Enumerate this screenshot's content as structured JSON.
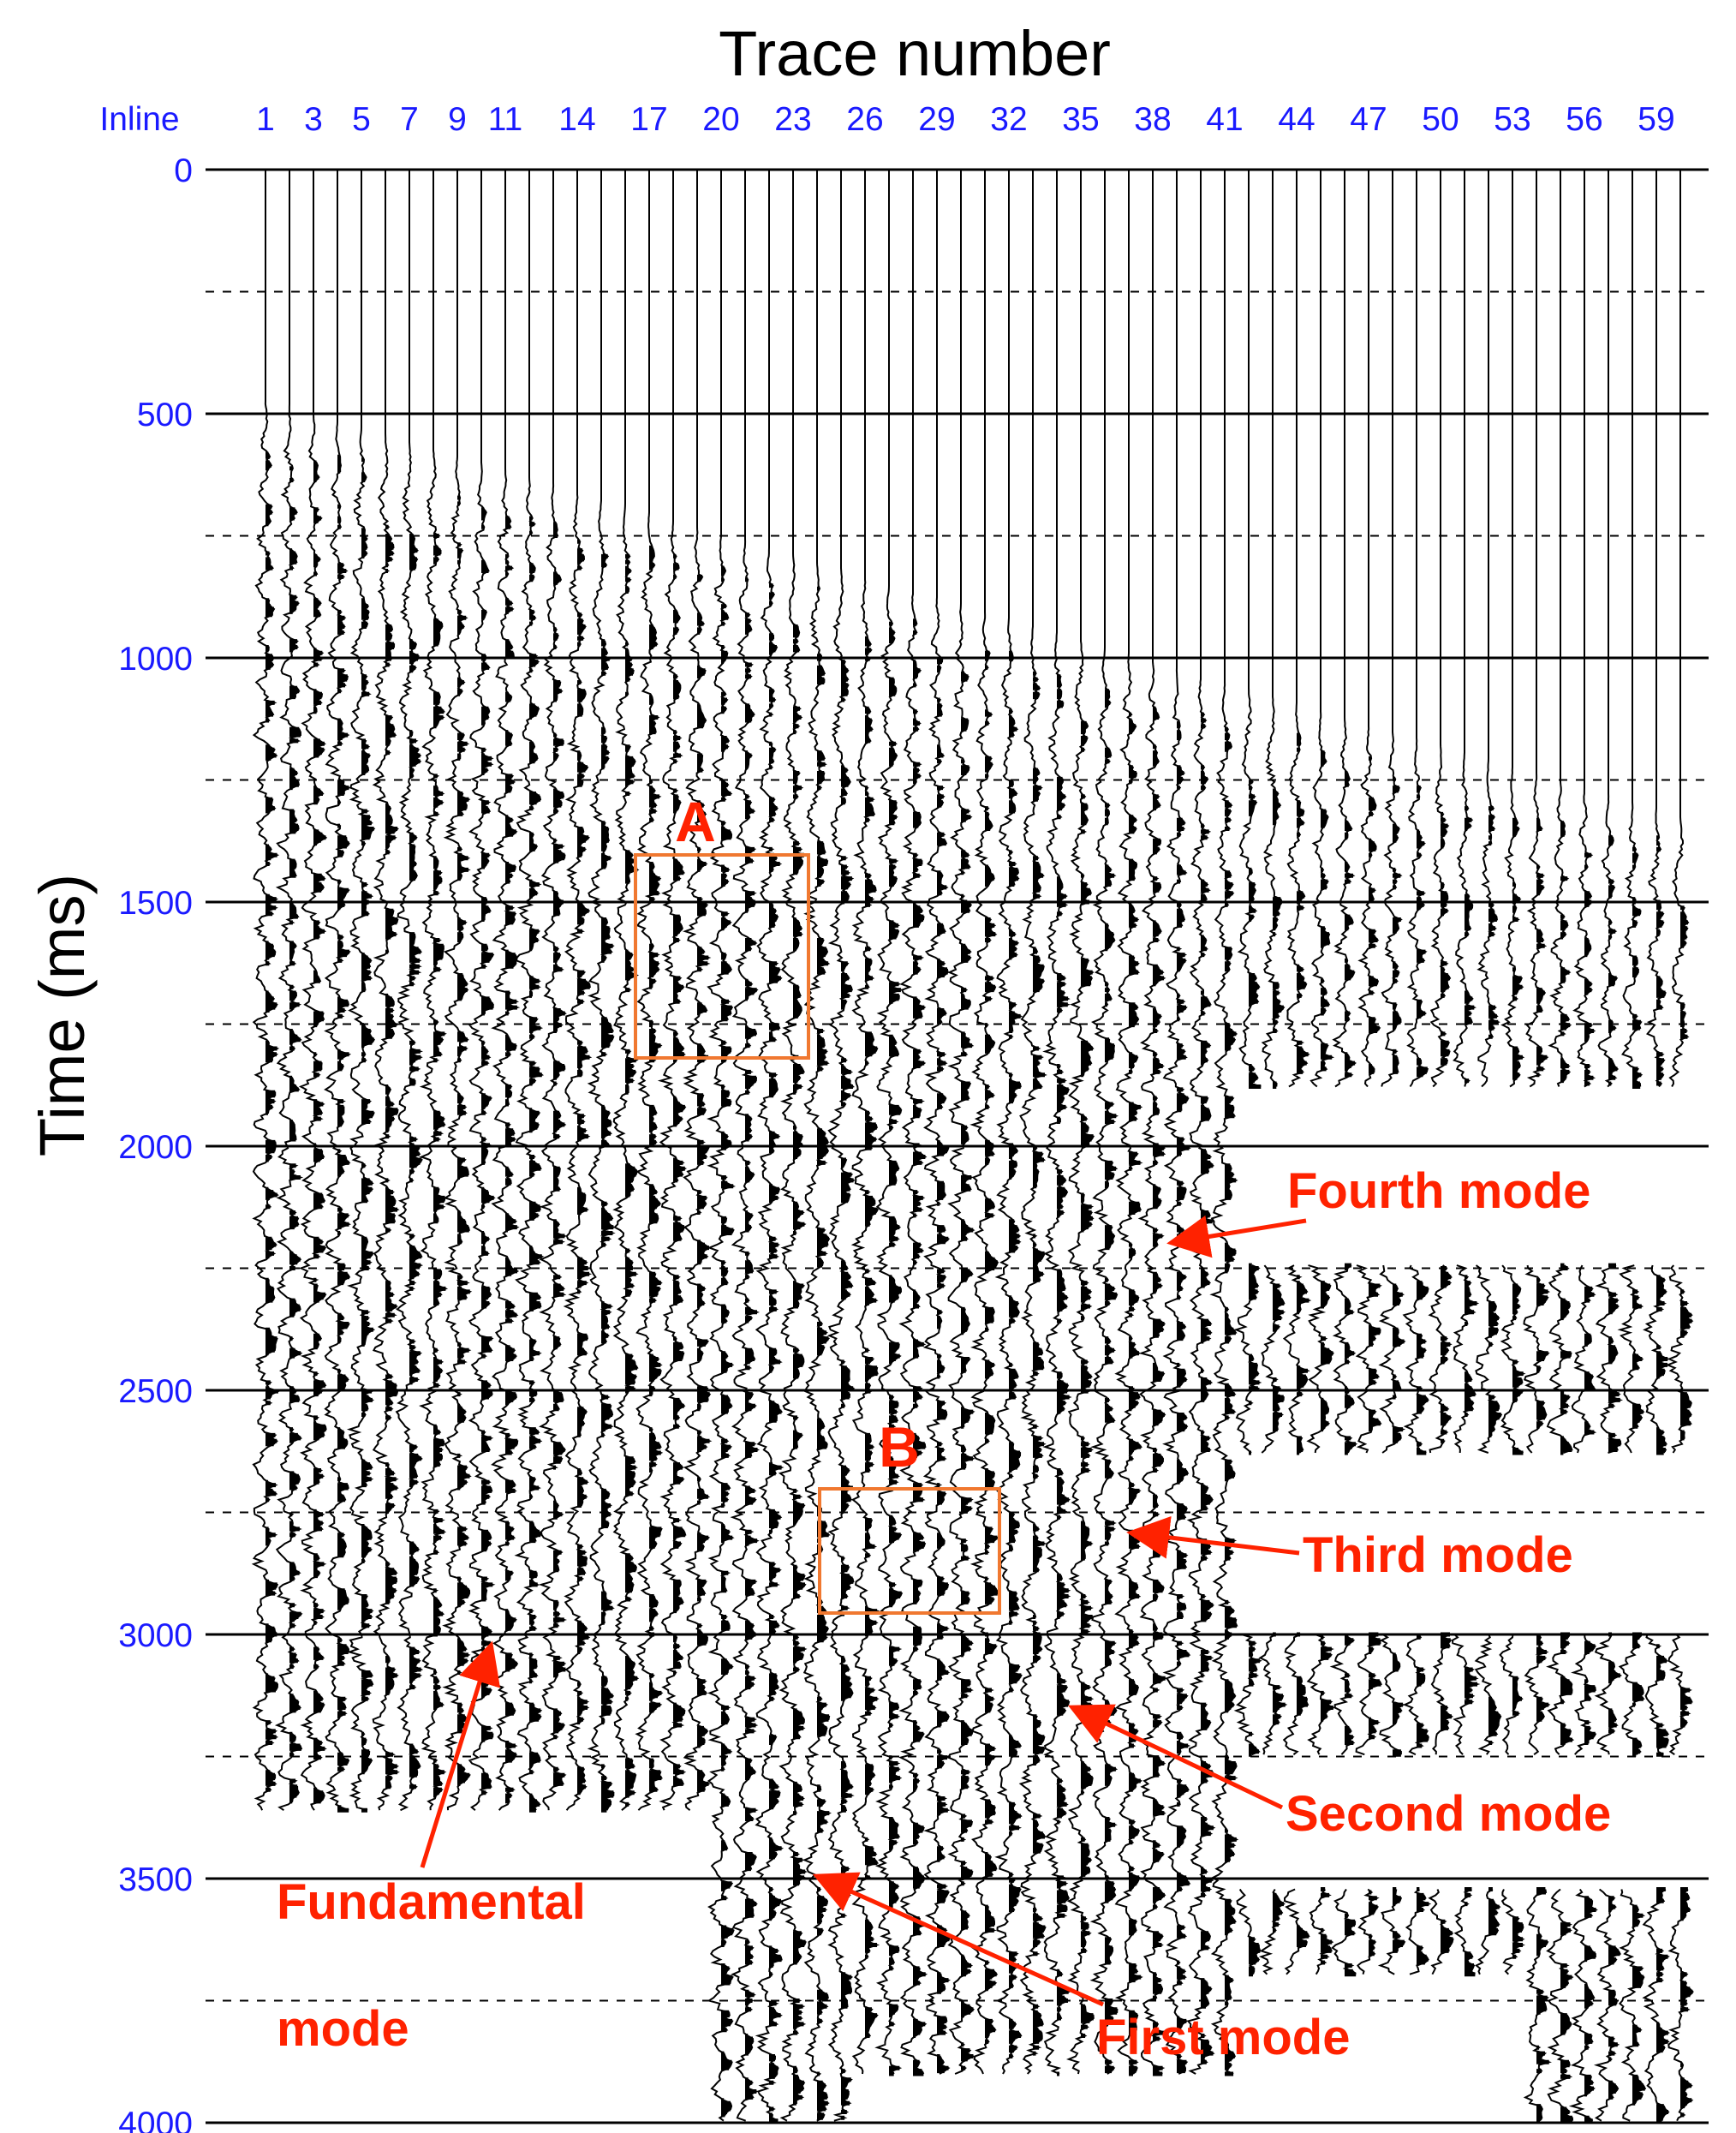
{
  "chart_data": {
    "type": "seismic-wiggle",
    "title": "Trace number",
    "xlabel": "Inline",
    "ylabel": "Time (ms)",
    "x_tick_labels": [
      "1",
      "3",
      "5",
      "7",
      "9",
      "11",
      "14",
      "17",
      "20",
      "23",
      "26",
      "29",
      "32",
      "35",
      "38",
      "41",
      "44",
      "47",
      "50",
      "53",
      "56",
      "59"
    ],
    "y_tick_labels": [
      "0",
      "500",
      "1000",
      "1500",
      "2000",
      "2500",
      "3000",
      "3500",
      "4000"
    ],
    "ylim": [
      0,
      4000
    ],
    "trace_count": 60,
    "grid": "solid every 500 ms, dashed at 250 ms offsets",
    "record_end_ms": [
      {
        "traces": "1-19",
        "end_ms": 3360
      },
      {
        "traces": "20-41",
        "end_ms": 4000
      },
      {
        "traces": "42-60",
        "end_ms": 4000
      }
    ],
    "boxes": [
      {
        "label": "A",
        "traces": "17-23",
        "time_ms": [
          1420,
          1850
        ],
        "color": "#f07830"
      },
      {
        "label": "B",
        "traces": "25-32",
        "time_ms": [
          2740,
          3000
        ],
        "color": "#f07830"
      }
    ],
    "annotations": [
      {
        "text": "Fourth mode",
        "color": "#ff2200"
      },
      {
        "text": "Third mode",
        "color": "#ff2200"
      },
      {
        "text": "Second mode",
        "color": "#ff2200"
      },
      {
        "text": "First mode",
        "color": "#ff2200"
      },
      {
        "text": "Fundamental",
        "color": "#ff2200"
      },
      {
        "text": "mode",
        "color": "#ff2200"
      }
    ]
  }
}
